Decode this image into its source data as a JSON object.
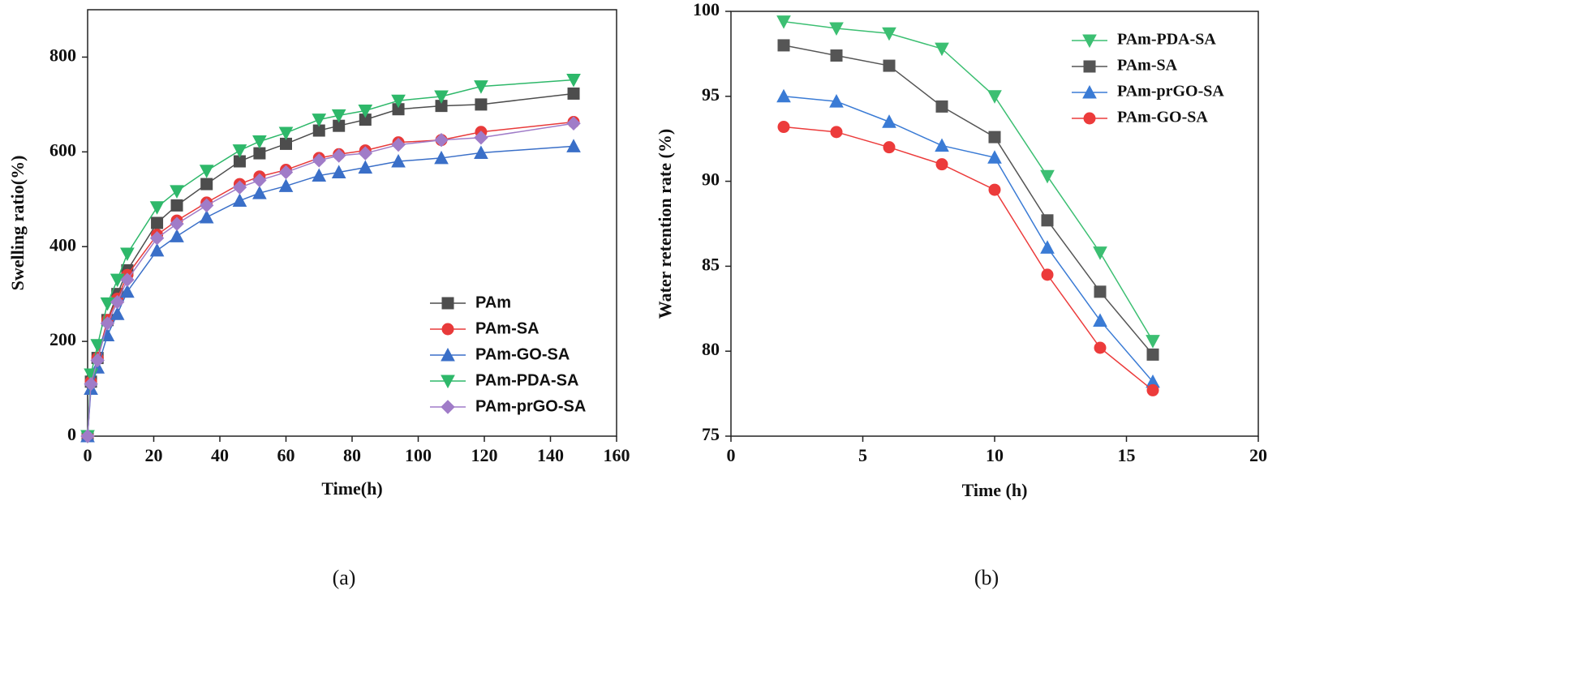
{
  "chart_data": [
    {
      "type": "line",
      "caption": "(a)",
      "xlabel": "Time(h)",
      "ylabel": "Swelling ratio(%)",
      "xlim": [
        0,
        160
      ],
      "xticks": [
        0,
        20,
        40,
        60,
        80,
        100,
        120,
        140,
        160
      ],
      "ylim": [
        0,
        900
      ],
      "yticks": [
        0,
        200,
        400,
        600,
        800
      ],
      "legend": "lower right",
      "x": [
        0,
        1,
        3,
        6,
        9,
        12,
        21,
        27,
        36,
        46,
        52,
        60,
        70,
        76,
        84,
        94,
        107,
        119,
        147
      ],
      "series": [
        {
          "name": "PAm",
          "color": "#4d4d4d",
          "marker": "square",
          "values": [
            0,
            115,
            165,
            245,
            300,
            350,
            450,
            487,
            532,
            580,
            597,
            617,
            645,
            655,
            668,
            690,
            697,
            700,
            723
          ]
        },
        {
          "name": "PAm-SA",
          "color": "#e83a3a",
          "marker": "circle",
          "values": [
            0,
            115,
            165,
            245,
            290,
            340,
            425,
            455,
            493,
            532,
            548,
            562,
            587,
            595,
            603,
            620,
            625,
            642,
            663
          ]
        },
        {
          "name": "PAm-GO-SA",
          "color": "#3a6fc8",
          "marker": "triangle-up",
          "values": [
            0,
            100,
            145,
            213,
            258,
            305,
            392,
            422,
            462,
            497,
            513,
            528,
            550,
            557,
            567,
            580,
            587,
            598,
            612
          ]
        },
        {
          "name": "PAm-PDA-SA",
          "color": "#2eb86a",
          "marker": "triangle-down",
          "values": [
            0,
            130,
            192,
            280,
            330,
            385,
            483,
            517,
            560,
            603,
            622,
            640,
            668,
            677,
            687,
            708,
            717,
            738,
            752
          ]
        },
        {
          "name": "PAm-prGO-SA",
          "color": "#a07cc8",
          "marker": "diamond",
          "values": [
            0,
            110,
            160,
            238,
            283,
            330,
            418,
            448,
            487,
            525,
            540,
            557,
            582,
            592,
            597,
            615,
            625,
            630,
            660
          ]
        }
      ]
    },
    {
      "type": "line",
      "caption": "(b)",
      "xlabel": "Time (h)",
      "ylabel": "Water retention rate (%)",
      "xlim": [
        0,
        20
      ],
      "xticks": [
        0,
        5,
        10,
        15,
        20
      ],
      "ylim": [
        75,
        100
      ],
      "yticks": [
        75,
        80,
        85,
        90,
        95,
        100
      ],
      "legend": "upper right",
      "x": [
        2,
        4,
        6,
        8,
        10,
        12,
        14,
        16
      ],
      "series": [
        {
          "name": "PAm-PDA-SA",
          "color": "#3cbf72",
          "marker": "triangle-down",
          "values": [
            99.4,
            99.0,
            98.7,
            97.8,
            95.0,
            90.3,
            85.8,
            80.6
          ]
        },
        {
          "name": "PAm-SA",
          "color": "#555555",
          "marker": "square",
          "values": [
            98.0,
            97.4,
            96.8,
            94.4,
            92.6,
            87.7,
            83.5,
            79.8
          ]
        },
        {
          "name": "PAm-prGO-SA",
          "color": "#3a7bd5",
          "marker": "triangle-up",
          "values": [
            95.0,
            94.7,
            93.5,
            92.1,
            91.4,
            86.1,
            81.8,
            78.2
          ]
        },
        {
          "name": "PAm-GO-SA",
          "color": "#ec3b3b",
          "marker": "circle",
          "values": [
            93.2,
            92.9,
            92.0,
            91.0,
            89.5,
            84.5,
            80.2,
            77.7
          ]
        }
      ]
    }
  ]
}
